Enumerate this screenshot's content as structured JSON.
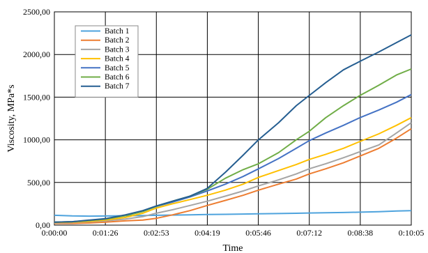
{
  "chart_data": {
    "type": "line",
    "title": "",
    "xlabel": "Time",
    "ylabel": "Viscosity, MPa*s",
    "x_ticks": [
      "0:00:00",
      "0:01:26",
      "0:02:53",
      "0:04:19",
      "0:05:46",
      "0:07:12",
      "0:08:38",
      "0:10:05"
    ],
    "y_ticks": [
      "0,00",
      "500,00",
      "1000,00",
      "1500,00",
      "2000,00",
      "2500,00"
    ],
    "xlim_seconds": [
      0,
      605
    ],
    "ylim": [
      0,
      2500
    ],
    "grid": true,
    "legend_position": "top-left",
    "x_seconds": [
      0,
      30,
      60,
      86,
      120,
      150,
      173,
      200,
      230,
      259,
      290,
      320,
      346,
      380,
      410,
      432,
      460,
      490,
      518,
      550,
      580,
      605
    ],
    "series": [
      {
        "name": "Batch 1",
        "color": "#4ea3dd",
        "values": [
          115,
          108,
          105,
          107,
          110,
          112,
          115,
          118,
          121,
          124,
          127,
          130,
          133,
          136,
          139,
          142,
          145,
          148,
          152,
          158,
          165,
          170
        ]
      },
      {
        "name": "Batch 2",
        "color": "#ed7d31",
        "values": [
          20,
          20,
          25,
          35,
          50,
          60,
          80,
          120,
          170,
          230,
          290,
          350,
          410,
          480,
          540,
          600,
          660,
          730,
          810,
          900,
          1020,
          1130
        ]
      },
      {
        "name": "Batch 3",
        "color": "#a5a5a5",
        "values": [
          25,
          30,
          40,
          50,
          70,
          100,
          140,
          180,
          230,
          280,
          340,
          400,
          460,
          530,
          600,
          660,
          720,
          790,
          860,
          940,
          1080,
          1200
        ]
      },
      {
        "name": "Batch 4",
        "color": "#ffc000",
        "values": [
          30,
          35,
          45,
          60,
          90,
          140,
          200,
          250,
          300,
          350,
          410,
          480,
          560,
          640,
          710,
          770,
          830,
          900,
          980,
          1070,
          1170,
          1260
        ]
      },
      {
        "name": "Batch 5",
        "color": "#4472c4",
        "values": [
          35,
          40,
          55,
          70,
          110,
          160,
          220,
          270,
          330,
          400,
          480,
          570,
          660,
          780,
          900,
          990,
          1080,
          1170,
          1260,
          1350,
          1440,
          1530
        ]
      },
      {
        "name": "Batch 6",
        "color": "#70ad47",
        "values": [
          35,
          40,
          55,
          70,
          110,
          160,
          220,
          280,
          340,
          420,
          550,
          650,
          720,
          850,
          1000,
          1100,
          1260,
          1400,
          1520,
          1640,
          1760,
          1830
        ]
      },
      {
        "name": "Batch 7",
        "color": "#255e91",
        "values": [
          35,
          40,
          60,
          75,
          120,
          170,
          225,
          280,
          340,
          430,
          620,
          820,
          1000,
          1200,
          1400,
          1520,
          1670,
          1820,
          1920,
          2030,
          2140,
          2230
        ]
      }
    ]
  }
}
